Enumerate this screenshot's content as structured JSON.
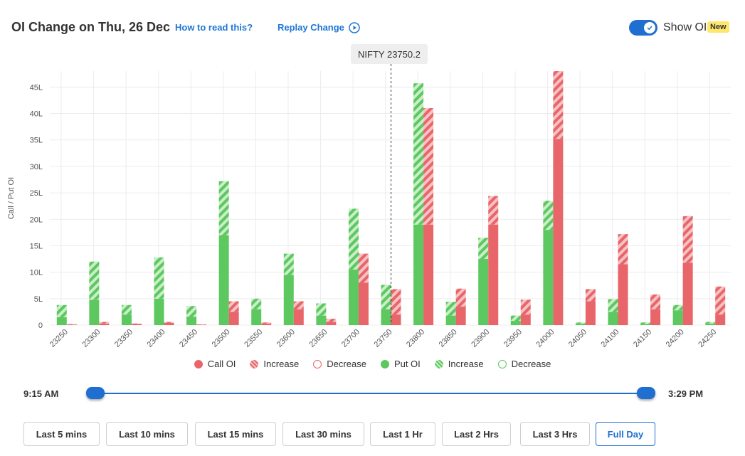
{
  "header": {
    "title": "OI Change on Thu, 26 Dec",
    "how_to_read": "How to read this?",
    "replay": "Replay Change",
    "show_oi_label": "Show OI",
    "new_badge": "New"
  },
  "spot": {
    "label": "NIFTY 23750.2"
  },
  "legend": [
    {
      "label": "Call OI",
      "style": "solid",
      "color": "#e8656a"
    },
    {
      "label": "Increase",
      "style": "hatched",
      "color": "#e8656a"
    },
    {
      "label": "Decrease",
      "style": "outline",
      "color": "#e8656a"
    },
    {
      "label": "Put OI",
      "style": "solid",
      "color": "#5cc85f"
    },
    {
      "label": "Increase",
      "style": "hatched",
      "color": "#5cc85f"
    },
    {
      "label": "Decrease",
      "style": "outline",
      "color": "#5cc85f"
    }
  ],
  "time_range": {
    "start": "9:15 AM",
    "end": "3:29 PM"
  },
  "buttons": [
    {
      "label": "Last 5 mins",
      "active": false
    },
    {
      "label": "Last 10 mins",
      "active": false
    },
    {
      "label": "Last 15 mins",
      "active": false
    },
    {
      "label": "Last 30 mins",
      "active": false
    },
    {
      "label": "Last 1 Hr",
      "active": false
    },
    {
      "label": "Last 2 Hrs",
      "active": false
    },
    {
      "label": "Last 3 Hrs",
      "active": false
    },
    {
      "label": "Full Day",
      "active": true
    }
  ],
  "colors": {
    "call": "#e8656a",
    "put": "#5cc85f",
    "accent": "#1f6fd1"
  },
  "chart_data": {
    "type": "bar",
    "ylabel": "Call / Put OI",
    "ylim": [
      0,
      48
    ],
    "yticks": [
      0,
      5,
      10,
      15,
      20,
      25,
      30,
      35,
      40,
      45
    ],
    "ytick_labels": [
      "0",
      "5L",
      "10L",
      "15L",
      "20L",
      "25L",
      "30L",
      "35L",
      "40L",
      "45L"
    ],
    "categories": [
      "23250",
      "23300",
      "23350",
      "23400",
      "23450",
      "23500",
      "23550",
      "23600",
      "23650",
      "23700",
      "23750",
      "23800",
      "23850",
      "23900",
      "23950",
      "24000",
      "24050",
      "24100",
      "24150",
      "24200",
      "24250"
    ],
    "spot_category": "23750",
    "series": [
      {
        "name": "Put OI",
        "values": [
          1.5,
          4.8,
          2.0,
          5.0,
          1.6,
          17.0,
          3.0,
          9.5,
          1.8,
          10.5,
          3.0,
          19.0,
          1.8,
          12.5,
          0.8,
          18.0,
          0.3,
          2.5,
          0.2,
          2.8,
          0.3
        ]
      },
      {
        "name": "Increase",
        "values": [
          2.3,
          7.2,
          1.8,
          7.8,
          2.0,
          10.2,
          2.0,
          4.0,
          2.3,
          11.5,
          4.6,
          26.7,
          2.6,
          4.0,
          1.0,
          5.5,
          0.2,
          2.4,
          0.3,
          1.0,
          0.3
        ]
      },
      {
        "name": "Call OI",
        "values": [
          0.1,
          0.3,
          0.2,
          0.4,
          0.1,
          2.5,
          0.3,
          3.0,
          0.6,
          8.0,
          2.0,
          19.0,
          3.5,
          19.0,
          2.0,
          35.2,
          4.5,
          11.5,
          3.0,
          11.8,
          2.0
        ]
      },
      {
        "name": "Increase",
        "values": [
          0.1,
          0.3,
          0.1,
          0.2,
          0.05,
          2.0,
          0.2,
          1.5,
          0.6,
          5.5,
          4.8,
          22.0,
          3.4,
          5.4,
          2.8,
          12.8,
          2.3,
          5.7,
          2.8,
          8.8,
          5.3
        ]
      }
    ]
  }
}
